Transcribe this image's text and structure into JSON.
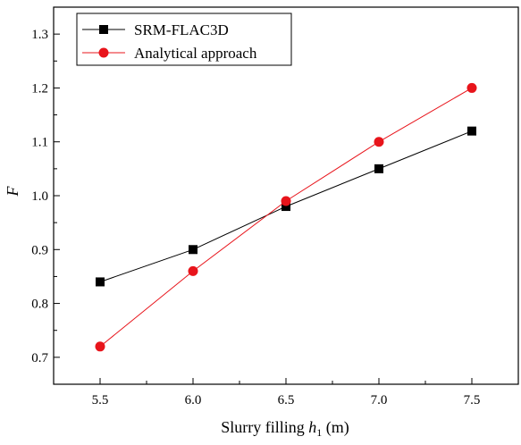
{
  "chart_data": {
    "type": "line",
    "xlabel": "Slurry filling ",
    "xlabel_var": "h",
    "xlabel_sub": "1",
    "xlabel_unit": " (m)",
    "ylabel": "F",
    "xlim": [
      5.25,
      7.75
    ],
    "ylim": [
      0.65,
      1.35
    ],
    "x": [
      5.5,
      6.0,
      6.5,
      7.0,
      7.5
    ],
    "x_ticks": [
      "5.5",
      "6.0",
      "6.5",
      "7.0",
      "7.5"
    ],
    "y_ticks": [
      0.7,
      0.8,
      0.9,
      1.0,
      1.1,
      1.2,
      1.3
    ],
    "y_tick_labels": [
      "0.7",
      "0.8",
      "0.9",
      "1.0",
      "1.1",
      "1.2",
      "1.3"
    ],
    "grid": false,
    "legend_position": "top-left",
    "series": [
      {
        "name": "SRM-FLAC3D",
        "values": [
          0.84,
          0.9,
          0.98,
          1.05,
          1.12
        ],
        "color": "#000000",
        "marker": "square"
      },
      {
        "name": "Analytical approach",
        "values": [
          0.72,
          0.86,
          0.99,
          1.1,
          1.2
        ],
        "color": "#e8141b",
        "marker": "circle"
      }
    ]
  }
}
